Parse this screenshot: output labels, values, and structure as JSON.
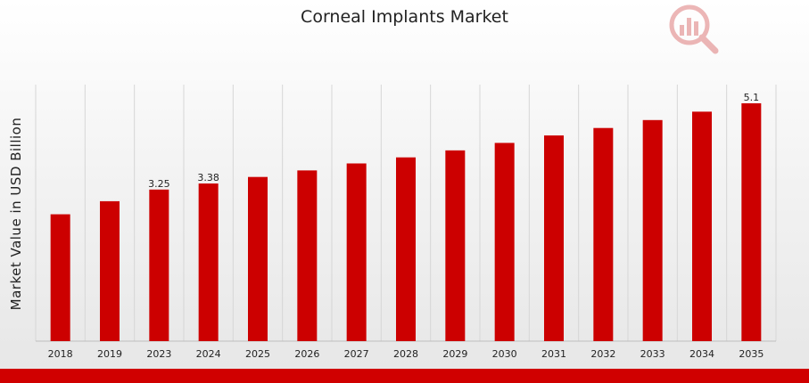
{
  "chart_data": {
    "type": "bar",
    "title": "Corneal Implants Market",
    "ylabel": "Market Value in USD Billion",
    "xlabel": "",
    "categories": [
      "2018",
      "2019",
      "2023",
      "2024",
      "2025",
      "2026",
      "2027",
      "2028",
      "2029",
      "2030",
      "2031",
      "2032",
      "2033",
      "2034",
      "2035"
    ],
    "values": [
      2.72,
      3.0,
      3.25,
      3.38,
      3.52,
      3.66,
      3.81,
      3.94,
      4.09,
      4.25,
      4.41,
      4.57,
      4.74,
      4.92,
      5.1
    ],
    "data_labels": [
      "",
      "",
      "3.25",
      "3.38",
      "",
      "",
      "",
      "",
      "",
      "",
      "",
      "",
      "",
      "",
      "5.1"
    ],
    "ylim": [
      0,
      5.5
    ],
    "grid": "vertical",
    "bar_color": "#cc0000"
  },
  "colors": {
    "accent": "#d00000"
  },
  "icons": {
    "logo": "magnifier-chart-logo"
  }
}
